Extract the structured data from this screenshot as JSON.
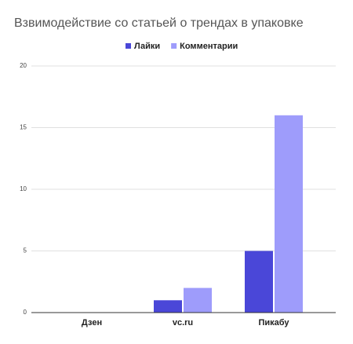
{
  "chart_data": {
    "type": "bar",
    "title": "Взвимодействие со статьей о трендах в упаковке",
    "categories": [
      "Дзен",
      "vc.ru",
      "Пикабу"
    ],
    "series": [
      {
        "name": "Лайки",
        "color": "#4a47d8",
        "values": [
          0,
          1,
          5
        ]
      },
      {
        "name": "Комментарии",
        "color": "#9e9cfb",
        "values": [
          0,
          2,
          16
        ]
      }
    ],
    "ylim": [
      0,
      20
    ],
    "yticks": [
      0,
      5,
      10,
      15,
      20
    ],
    "grid": true,
    "legend": "top"
  }
}
